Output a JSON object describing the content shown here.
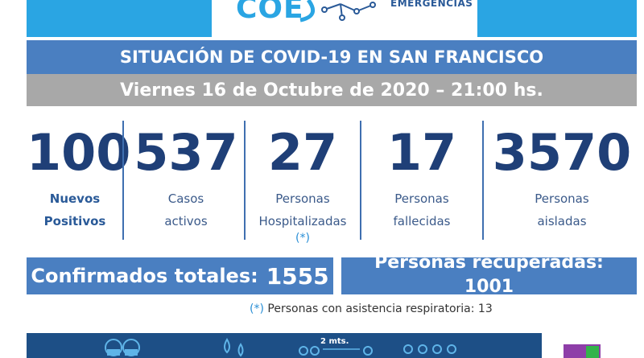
{
  "header": {
    "logo_text": "COE",
    "logo_subtext": "EMERGENCIAS"
  },
  "title": "SITUACIÓN DE COVID-19 EN SAN FRANCISCO",
  "date_line": "Viernes 16 de Octubre de 2020 – 21:00 hs.",
  "stats": [
    {
      "value": "100",
      "label_line1": "Nuevos",
      "label_line2": "Positivos"
    },
    {
      "value": "537",
      "label_line1": "Casos",
      "label_line2": "activos"
    },
    {
      "value": "27",
      "label_line1": "Personas",
      "label_line2": "Hospitalizadas",
      "note": "(*)"
    },
    {
      "value": "17",
      "label_line1": "Personas",
      "label_line2": "fallecidas"
    },
    {
      "value": "3570",
      "label_line1": "Personas",
      "label_line2": "aisladas"
    }
  ],
  "confirmed": {
    "label": "Confirmados totales:",
    "value": "1555"
  },
  "recovered": {
    "label": "Personas recuperadas:",
    "value": "1001"
  },
  "footnote": {
    "mark": "(*)",
    "text": "Personas con asistencia respiratoria: 13"
  },
  "bottom_strip": {
    "distance_label": "2 mts."
  },
  "colors": {
    "banner": "#2aa5e3",
    "title_bar": "#4a7fc1",
    "date_bar": "#a8a8a8",
    "numbers": "#1f3f77",
    "bottom_strip": "#1d4f86"
  }
}
